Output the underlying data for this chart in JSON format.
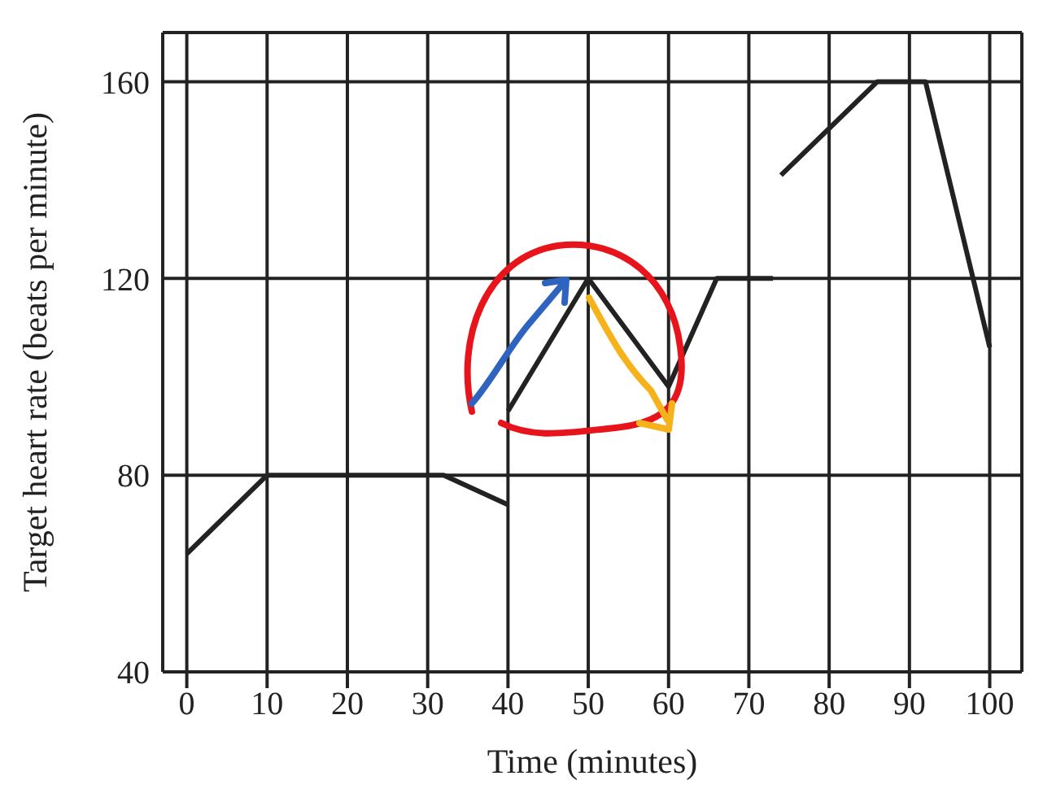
{
  "chart_data": {
    "type": "line",
    "xlabel": "Time (minutes)",
    "ylabel": "Target heart rate (beats per minute)",
    "series": [
      {
        "color": "#222222",
        "x": [
          0,
          10,
          32,
          40
        ],
        "values": [
          64,
          80,
          80,
          74
        ]
      },
      {
        "color": "#222222",
        "x": [
          40,
          50,
          60,
          66,
          73
        ],
        "values": [
          93,
          120,
          98,
          120,
          120
        ]
      },
      {
        "color": "#222222",
        "x": [
          74,
          86,
          92,
          100
        ],
        "values": [
          141,
          160,
          160,
          106
        ]
      }
    ],
    "xlim": [
      -3,
      104
    ],
    "xticks": [
      0,
      10,
      20,
      30,
      40,
      50,
      60,
      70,
      80,
      90,
      100
    ],
    "ylim": [
      40,
      170
    ],
    "yticks": [
      40,
      80,
      120,
      160
    ],
    "grid": true,
    "marker": "none",
    "line_style": "solid"
  }
}
